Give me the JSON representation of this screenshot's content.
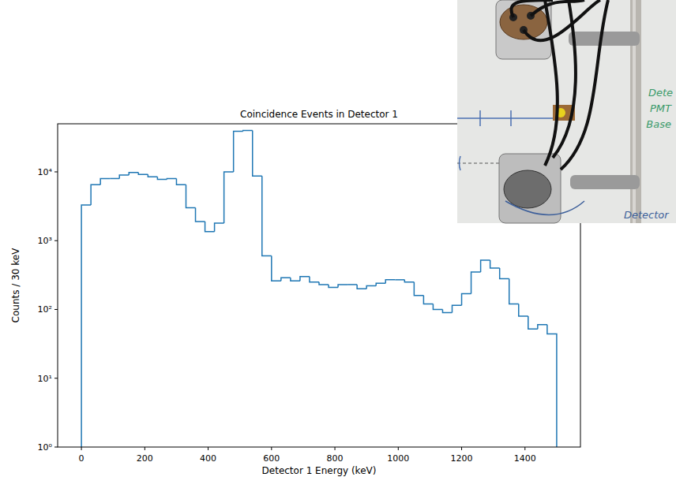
{
  "chart_data": {
    "type": "histogram",
    "title": "Coincidence Events in Detector 1",
    "x_label": "Detector 1 Energy (keV)",
    "y_label": "Counts / 30 keV",
    "bins": [
      0,
      30,
      60,
      90,
      120,
      150,
      180,
      210,
      240,
      270,
      300,
      330,
      360,
      390,
      420,
      450,
      480,
      510,
      540,
      570,
      600,
      630,
      660,
      690,
      720,
      750,
      780,
      810,
      840,
      870,
      900,
      930,
      960,
      990,
      1020,
      1050,
      1080,
      1110,
      1140,
      1170,
      1200,
      1230,
      1260,
      1290,
      1320,
      1350,
      1380,
      1410,
      1440,
      1470,
      1500
    ],
    "counts": [
      3300,
      6500,
      8000,
      8000,
      9000,
      9800,
      9200,
      8500,
      7800,
      8000,
      6500,
      3000,
      1900,
      1350,
      1800,
      10000,
      39000,
      40000,
      8700,
      600,
      260,
      290,
      260,
      300,
      250,
      230,
      210,
      230,
      230,
      200,
      220,
      240,
      270,
      270,
      250,
      160,
      120,
      100,
      90,
      115,
      170,
      350,
      520,
      400,
      280,
      120,
      80,
      52,
      60,
      44
    ],
    "color": "#1f77b4",
    "log": "y",
    "grid": false,
    "xlim": [
      -75,
      1575
    ],
    "xticks": [
      0,
      200,
      400,
      600,
      800,
      1000,
      1200,
      1400
    ],
    "ylim": [
      1,
      50000
    ],
    "yticks": [
      {
        "value": 1,
        "label": "10⁰"
      },
      {
        "value": 10,
        "label": "10¹"
      },
      {
        "value": 100,
        "label": "10²"
      },
      {
        "value": 1000,
        "label": "10³"
      },
      {
        "value": 10000,
        "label": "10⁴"
      }
    ]
  },
  "photo": {
    "labels": [
      "Dete",
      "PMT",
      "Base",
      "Detector"
    ]
  }
}
